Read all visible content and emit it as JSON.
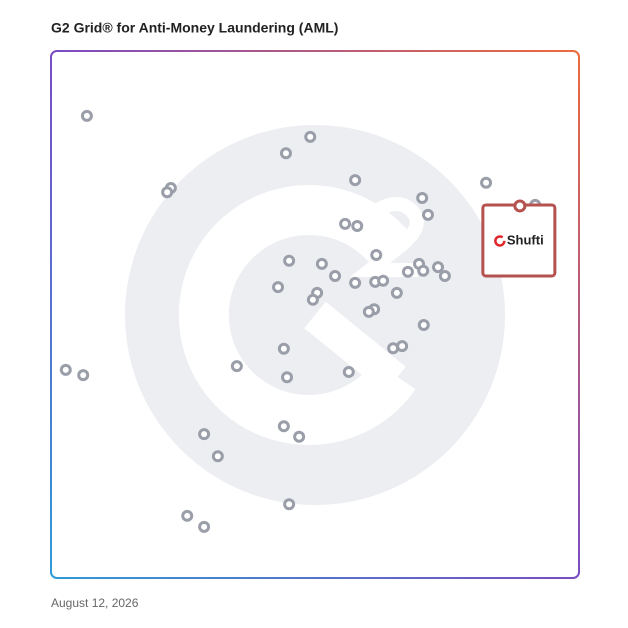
{
  "chart_data": {
    "type": "scatter",
    "title": "G2 Grid® for Anti-Money Laundering (AML)",
    "footer": "August 12, 2026",
    "xlim": [
      0,
      100
    ],
    "ylim": [
      0,
      100
    ],
    "color": "#9a9ea8",
    "x": [
      6.8,
      49.1,
      44.5,
      22.7,
      22.0,
      57.6,
      82.4,
      70.3,
      71.4,
      55.7,
      58.0,
      61.6,
      45.1,
      51.3,
      69.7,
      73.3,
      67.6,
      70.5,
      74.6,
      53.8,
      57.6,
      61.4,
      62.9,
      43.0,
      50.4,
      49.6,
      65.5,
      61.2,
      60.2,
      70.6,
      44.1,
      64.8,
      66.5,
      35.2,
      2.8,
      6.1,
      56.4,
      44.7,
      29.0,
      44.1,
      47.0,
      31.6,
      45.1,
      25.8,
      29.0,
      91.7
    ],
    "y": [
      87.7,
      83.7,
      80.6,
      74.0,
      73.2,
      75.5,
      75.0,
      72.1,
      68.9,
      67.2,
      66.8,
      61.3,
      60.2,
      59.6,
      59.6,
      59.0,
      58.1,
      58.3,
      57.3,
      57.3,
      56.0,
      56.2,
      56.4,
      55.2,
      54.1,
      52.8,
      54.1,
      51.0,
      50.5,
      48.0,
      43.5,
      43.6,
      44.0,
      40.2,
      39.5,
      38.5,
      39.1,
      38.1,
      27.3,
      28.8,
      26.8,
      23.1,
      14.0,
      11.8,
      9.7,
      70.8
    ],
    "highlight": {
      "name": "Shufti",
      "x": 88.8,
      "y": 70.6,
      "color": "#b5524f"
    }
  }
}
